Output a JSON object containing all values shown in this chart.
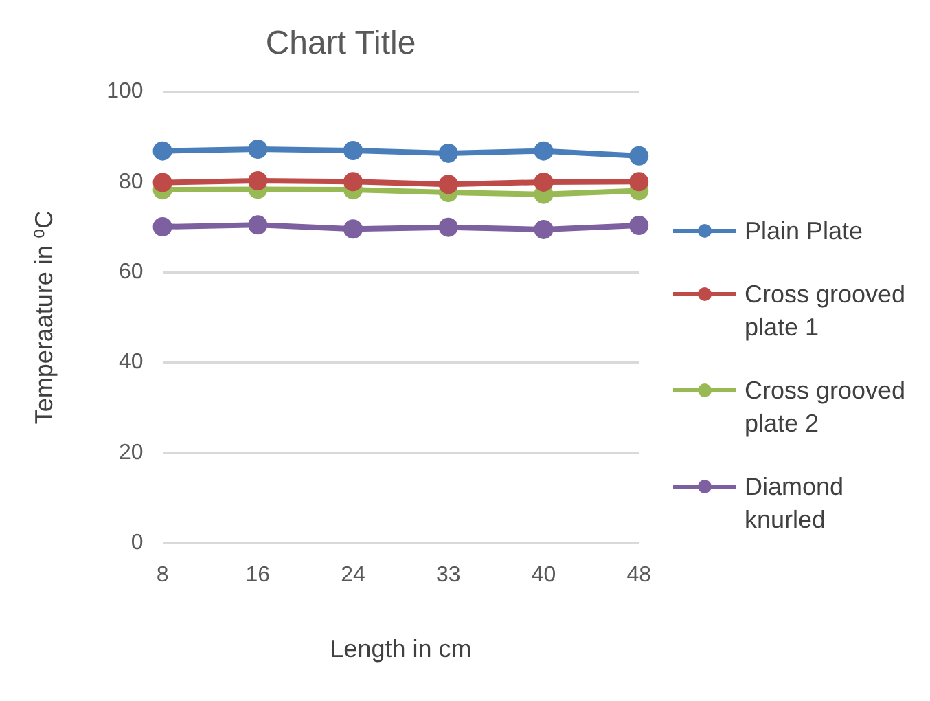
{
  "chart_data": {
    "type": "line",
    "title": "Chart Title",
    "xlabel": "Length in cm",
    "ylabel": "Temperaature in ⁰C",
    "categories": [
      "8",
      "16",
      "24",
      "33",
      "40",
      "48"
    ],
    "series": [
      {
        "name": "Plain Plate",
        "color": "#4a7ebb",
        "values": [
          86.9,
          87.3,
          87.0,
          86.4,
          86.9,
          85.8
        ]
      },
      {
        "name": "Cross grooved plate 1",
        "color": "#be4b48",
        "values": [
          79.9,
          80.3,
          80.1,
          79.5,
          80.0,
          80.1
        ]
      },
      {
        "name": "Cross grooved plate 2",
        "color": "#98b954",
        "values": [
          78.3,
          78.4,
          78.3,
          77.7,
          77.3,
          78.1
        ]
      },
      {
        "name": "Diamond knurled",
        "color": "#7d60a0",
        "values": [
          70.1,
          70.5,
          69.6,
          70.0,
          69.5,
          70.4
        ]
      }
    ],
    "ylim": [
      0,
      100
    ],
    "yticks": [
      0,
      20,
      40,
      60,
      80,
      100
    ],
    "grid": "y",
    "legend": "right",
    "marker": "circle",
    "line_style": "solid"
  }
}
